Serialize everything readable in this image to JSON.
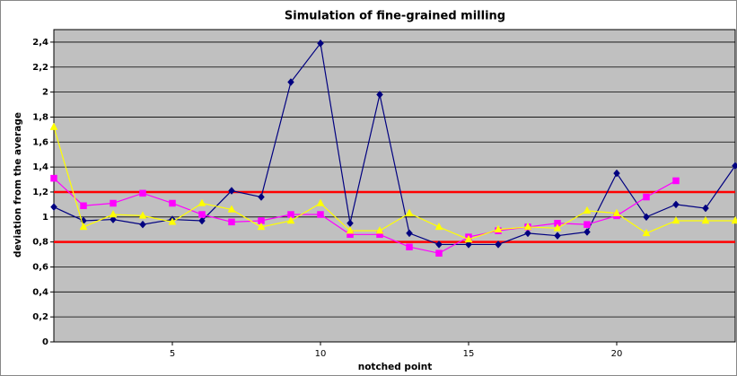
{
  "chart_data": {
    "type": "line",
    "title": "Simulation of fine-grained milling",
    "x_label": "notched point",
    "y_label": "deviation from the average",
    "x": [
      1,
      2,
      3,
      4,
      5,
      6,
      7,
      8,
      9,
      10,
      11,
      12,
      13,
      14,
      15,
      16,
      17,
      18,
      19,
      20,
      21,
      22,
      23,
      24
    ],
    "series": [
      {
        "color": "#000080",
        "marker": "diamond",
        "values": [
          1.08,
          0.97,
          0.98,
          0.94,
          0.98,
          0.97,
          1.21,
          1.16,
          2.08,
          2.39,
          0.95,
          1.98,
          0.87,
          0.78,
          0.78,
          0.78,
          0.87,
          0.85,
          0.88,
          1.35,
          1.0,
          1.1,
          1.07,
          1.41
        ]
      },
      {
        "color": "#ff00ff",
        "marker": "square",
        "values": [
          1.31,
          1.09,
          1.11,
          1.19,
          1.11,
          1.02,
          0.96,
          0.97,
          1.02,
          1.02,
          0.86,
          0.86,
          0.76,
          0.71,
          0.84,
          0.89,
          0.92,
          0.95,
          0.94,
          1.01,
          1.16,
          1.29,
          null,
          null
        ]
      },
      {
        "color": "#ffff00",
        "marker": "triangle",
        "values": [
          1.72,
          0.92,
          1.02,
          1.01,
          0.96,
          1.11,
          1.06,
          0.92,
          0.97,
          1.11,
          0.89,
          0.89,
          1.03,
          0.92,
          0.82,
          0.9,
          0.92,
          0.91,
          1.05,
          1.03,
          0.87,
          0.97,
          0.97,
          0.97
        ]
      }
    ],
    "reference_lines": [
      1.2,
      0.8
    ],
    "reference_color": "#ff0000",
    "xlim": [
      1,
      24
    ],
    "xticks": [
      5,
      10,
      15,
      20
    ],
    "ylim": [
      0,
      2.5
    ],
    "yticks": [
      0,
      {
        "value": 0.2,
        "label": "0,2"
      },
      {
        "value": 0.4,
        "label": "0,4"
      },
      {
        "value": 0.6,
        "label": "0,6"
      },
      {
        "value": 0.8,
        "label": "0,8"
      },
      1,
      {
        "value": 1.2,
        "label": "1,2"
      },
      {
        "value": 1.4,
        "label": "1,4"
      },
      {
        "value": 1.6,
        "label": "1,6"
      },
      {
        "value": 1.8,
        "label": "1,8"
      },
      2,
      {
        "value": 2.2,
        "label": "2,2"
      },
      {
        "value": 2.4,
        "label": "2,4"
      }
    ],
    "grid": true,
    "plot_background": "#c0c0c0"
  }
}
